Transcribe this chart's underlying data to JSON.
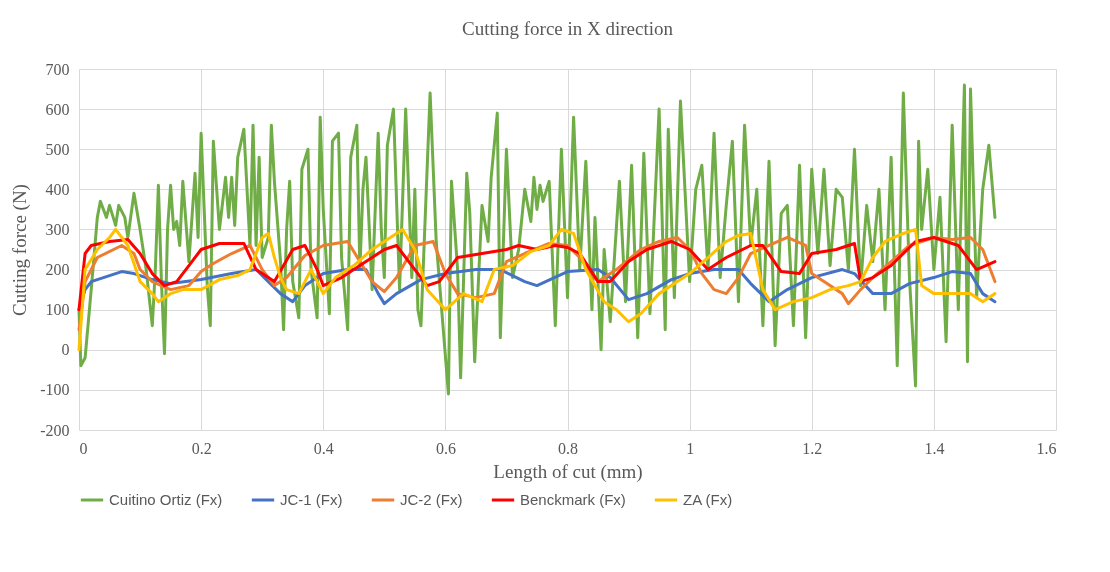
{
  "chart_data": {
    "type": "line",
    "title": "Cutting force in X direction",
    "xlabel": "Length of cut (mm)",
    "ylabel": "Cutting force (N)",
    "xlim": [
      0,
      1.6
    ],
    "xticks": [
      0,
      0.2,
      0.4,
      0.6,
      0.8,
      1,
      1.2,
      1.4,
      1.6
    ],
    "ylim": [
      -200,
      700
    ],
    "yticks": [
      -200,
      -100,
      0,
      100,
      200,
      300,
      400,
      500,
      600,
      700
    ],
    "grid": true,
    "legend": "bottom",
    "line_style": "solid",
    "marker": "none",
    "series": [
      {
        "name": "Cuitino Ortiz (Fx)",
        "color": "#70ad47",
        "x": [
          0,
          0.003,
          0.01,
          0.02,
          0.03,
          0.035,
          0.045,
          0.05,
          0.06,
          0.065,
          0.075,
          0.08,
          0.09,
          0.1,
          0.11,
          0.12,
          0.125,
          0.13,
          0.135,
          0.14,
          0.145,
          0.15,
          0.155,
          0.16,
          0.165,
          0.17,
          0.18,
          0.19,
          0.195,
          0.2,
          0.21,
          0.215,
          0.22,
          0.23,
          0.24,
          0.245,
          0.25,
          0.255,
          0.26,
          0.27,
          0.28,
          0.285,
          0.29,
          0.295,
          0.3,
          0.31,
          0.315,
          0.32,
          0.33,
          0.335,
          0.34,
          0.345,
          0.35,
          0.36,
          0.365,
          0.375,
          0.38,
          0.39,
          0.395,
          0.4,
          0.41,
          0.415,
          0.425,
          0.43,
          0.44,
          0.445,
          0.455,
          0.46,
          0.465,
          0.47,
          0.48,
          0.49,
          0.495,
          0.5,
          0.505,
          0.515,
          0.525,
          0.535,
          0.545,
          0.55,
          0.555,
          0.56,
          0.575,
          0.585,
          0.605,
          0.61,
          0.62,
          0.625,
          0.635,
          0.64,
          0.648,
          0.655,
          0.66,
          0.67,
          0.675,
          0.685,
          0.69,
          0.7,
          0.71,
          0.72,
          0.73,
          0.74,
          0.745,
          0.75,
          0.755,
          0.76,
          0.77,
          0.78,
          0.79,
          0.8,
          0.81,
          0.82,
          0.83,
          0.84,
          0.845,
          0.855,
          0.86,
          0.87,
          0.885,
          0.895,
          0.905,
          0.915,
          0.925,
          0.935,
          0.95,
          0.96,
          0.965,
          0.975,
          0.985,
          1.0,
          1.01,
          1.02,
          1.03,
          1.04,
          1.05,
          1.06,
          1.07,
          1.08,
          1.09,
          1.1,
          1.11,
          1.12,
          1.13,
          1.14,
          1.15,
          1.16,
          1.17,
          1.18,
          1.19,
          1.2,
          1.21,
          1.22,
          1.23,
          1.24,
          1.25,
          1.26,
          1.27,
          1.28,
          1.29,
          1.3,
          1.31,
          1.32,
          1.33,
          1.34,
          1.35,
          1.36,
          1.37,
          1.375,
          1.38,
          1.39,
          1.4,
          1.41,
          1.42,
          1.43,
          1.44,
          1.45,
          1.455,
          1.46,
          1.47,
          1.48,
          1.49,
          1.5
        ],
        "values": [
          100,
          -40,
          -20,
          150,
          330,
          370,
          330,
          360,
          310,
          360,
          330,
          280,
          390,
          300,
          200,
          60,
          200,
          410,
          170,
          -10,
          300,
          410,
          300,
          320,
          260,
          420,
          220,
          440,
          280,
          540,
          160,
          60,
          520,
          300,
          430,
          330,
          430,
          310,
          480,
          550,
          260,
          560,
          260,
          480,
          230,
          280,
          560,
          420,
          220,
          50,
          300,
          420,
          170,
          80,
          450,
          500,
          200,
          80,
          580,
          350,
          90,
          520,
          540,
          230,
          50,
          480,
          560,
          200,
          400,
          480,
          150,
          540,
          300,
          180,
          510,
          600,
          150,
          600,
          180,
          400,
          100,
          60,
          640,
          270,
          -110,
          420,
          200,
          -70,
          440,
          340,
          -30,
          200,
          360,
          270,
          430,
          590,
          30,
          500,
          180,
          250,
          400,
          320,
          430,
          350,
          410,
          370,
          420,
          60,
          500,
          130,
          580,
          200,
          470,
          100,
          330,
          0,
          250,
          70,
          420,
          120,
          460,
          30,
          490,
          90,
          600,
          50,
          550,
          130,
          620,
          170,
          400,
          460,
          200,
          540,
          180,
          360,
          520,
          120,
          560,
          260,
          400,
          60,
          470,
          10,
          340,
          360,
          60,
          460,
          30,
          450,
          240,
          450,
          210,
          400,
          380,
          200,
          500,
          160,
          360,
          220,
          400,
          100,
          480,
          -40,
          640,
          180,
          -90,
          520,
          300,
          450,
          200,
          380,
          20,
          560,
          100,
          660,
          -30,
          650,
          130,
          400,
          510,
          330
        ]
      },
      {
        "name": "JC-1 (Fx)",
        "color": "#4472c4",
        "x": [
          0,
          0.01,
          0.02,
          0.04,
          0.07,
          0.09,
          0.1,
          0.12,
          0.15,
          0.2,
          0.25,
          0.29,
          0.31,
          0.33,
          0.35,
          0.37,
          0.4,
          0.44,
          0.47,
          0.49,
          0.5,
          0.52,
          0.56,
          0.6,
          0.65,
          0.69,
          0.71,
          0.73,
          0.75,
          0.8,
          0.85,
          0.87,
          0.9,
          0.93,
          0.97,
          1.0,
          1.04,
          1.08,
          1.1,
          1.13,
          1.16,
          1.2,
          1.25,
          1.27,
          1.3,
          1.33,
          1.36,
          1.4,
          1.43,
          1.46,
          1.48,
          1.5
        ],
        "values": [
          100,
          150,
          170,
          180,
          195,
          190,
          185,
          175,
          165,
          175,
          190,
          200,
          170,
          140,
          120,
          160,
          190,
          200,
          200,
          140,
          115,
          140,
          175,
          190,
          200,
          200,
          185,
          170,
          160,
          195,
          200,
          180,
          125,
          140,
          175,
          190,
          200,
          200,
          165,
          120,
          150,
          180,
          200,
          190,
          140,
          140,
          165,
          180,
          195,
          190,
          140,
          120
        ]
      },
      {
        "name": "JC-2 (Fx)",
        "color": "#ed7d31",
        "x": [
          0,
          0.01,
          0.03,
          0.07,
          0.09,
          0.1,
          0.12,
          0.15,
          0.18,
          0.2,
          0.22,
          0.25,
          0.28,
          0.3,
          0.32,
          0.34,
          0.37,
          0.4,
          0.42,
          0.44,
          0.46,
          0.48,
          0.5,
          0.52,
          0.55,
          0.58,
          0.6,
          0.62,
          0.65,
          0.68,
          0.7,
          0.73,
          0.77,
          0.8,
          0.82,
          0.85,
          0.88,
          0.92,
          0.95,
          0.98,
          1.0,
          1.02,
          1.04,
          1.06,
          1.08,
          1.1,
          1.13,
          1.16,
          1.19,
          1.2,
          1.22,
          1.25,
          1.26,
          1.28,
          1.3,
          1.33,
          1.36,
          1.4,
          1.43,
          1.46,
          1.48,
          1.5
        ],
        "values": [
          50,
          170,
          230,
          260,
          240,
          200,
          170,
          150,
          160,
          195,
          215,
          240,
          260,
          200,
          160,
          180,
          235,
          260,
          265,
          270,
          220,
          170,
          145,
          180,
          260,
          270,
          190,
          140,
          130,
          140,
          220,
          240,
          265,
          260,
          230,
          170,
          200,
          250,
          270,
          280,
          250,
          190,
          150,
          140,
          180,
          240,
          260,
          280,
          260,
          190,
          170,
          140,
          115,
          150,
          180,
          220,
          260,
          280,
          275,
          280,
          250,
          170
        ]
      },
      {
        "name": "Benckmark (Fx)",
        "color": "#ff0000",
        "x": [
          0,
          0.01,
          0.02,
          0.05,
          0.08,
          0.1,
          0.12,
          0.14,
          0.16,
          0.18,
          0.2,
          0.23,
          0.27,
          0.29,
          0.32,
          0.35,
          0.37,
          0.39,
          0.4,
          0.43,
          0.47,
          0.5,
          0.52,
          0.55,
          0.57,
          0.59,
          0.62,
          0.66,
          0.7,
          0.72,
          0.75,
          0.78,
          0.8,
          0.82,
          0.85,
          0.87,
          0.9,
          0.93,
          0.97,
          1.0,
          1.03,
          1.06,
          1.1,
          1.12,
          1.15,
          1.18,
          1.2,
          1.24,
          1.27,
          1.28,
          1.3,
          1.33,
          1.37,
          1.4,
          1.44,
          1.47,
          1.5
        ],
        "values": [
          100,
          240,
          260,
          270,
          275,
          240,
          190,
          160,
          170,
          210,
          250,
          265,
          265,
          200,
          170,
          250,
          260,
          200,
          160,
          180,
          220,
          250,
          260,
          200,
          160,
          170,
          230,
          240,
          250,
          260,
          250,
          260,
          255,
          240,
          170,
          170,
          220,
          250,
          270,
          250,
          200,
          230,
          260,
          260,
          195,
          190,
          240,
          250,
          265,
          170,
          180,
          210,
          270,
          280,
          260,
          200,
          220
        ]
      },
      {
        "name": "ZA (Fx)",
        "color": "#ffc000",
        "x": [
          0,
          0.01,
          0.03,
          0.05,
          0.06,
          0.08,
          0.1,
          0.12,
          0.13,
          0.15,
          0.17,
          0.2,
          0.23,
          0.26,
          0.28,
          0.3,
          0.31,
          0.32,
          0.33,
          0.34,
          0.36,
          0.38,
          0.4,
          0.42,
          0.45,
          0.48,
          0.51,
          0.53,
          0.55,
          0.57,
          0.6,
          0.63,
          0.66,
          0.68,
          0.71,
          0.74,
          0.77,
          0.79,
          0.81,
          0.83,
          0.86,
          0.88,
          0.9,
          0.92,
          0.95,
          0.98,
          1.0,
          1.03,
          1.06,
          1.08,
          1.1,
          1.12,
          1.14,
          1.17,
          1.2,
          1.23,
          1.26,
          1.28,
          1.3,
          1.32,
          1.35,
          1.37,
          1.38,
          1.4,
          1.43,
          1.46,
          1.48,
          1.5
        ],
        "values": [
          0,
          200,
          250,
          280,
          300,
          260,
          170,
          140,
          120,
          140,
          150,
          150,
          175,
          185,
          200,
          280,
          290,
          230,
          180,
          150,
          140,
          200,
          140,
          180,
          210,
          250,
          280,
          300,
          250,
          150,
          100,
          140,
          120,
          200,
          210,
          245,
          260,
          300,
          290,
          200,
          120,
          100,
          70,
          90,
          140,
          170,
          190,
          230,
          270,
          285,
          290,
          150,
          100,
          120,
          130,
          150,
          160,
          170,
          230,
          270,
          290,
          300,
          160,
          140,
          140,
          140,
          120,
          140
        ]
      }
    ]
  }
}
